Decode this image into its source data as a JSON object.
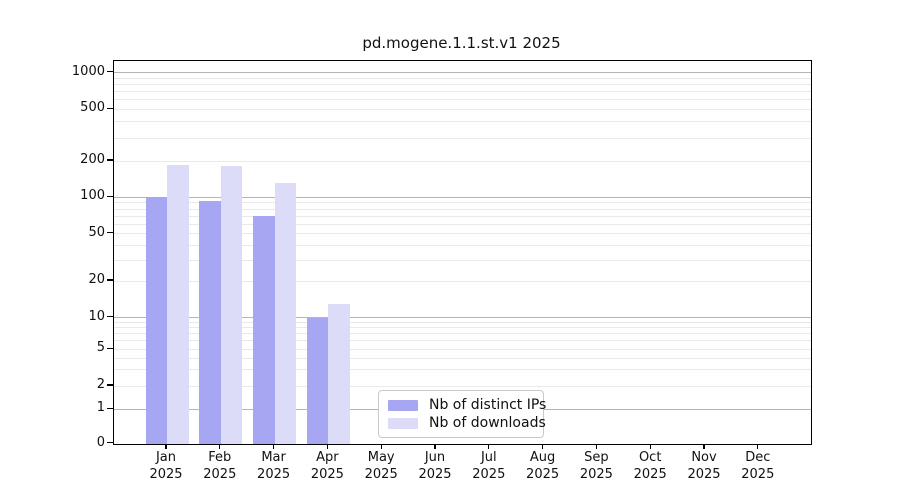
{
  "chart_data": {
    "type": "bar",
    "title": "pd.mogene.1.1.st.v1 2025",
    "categories": [
      "Jan",
      "Feb",
      "Mar",
      "Apr",
      "May",
      "Jun",
      "Jul",
      "Aug",
      "Sep",
      "Oct",
      "Nov",
      "Dec"
    ],
    "x_tick_year": "2025",
    "series": [
      {
        "name": "Nb of distinct IPs",
        "color": "#a6a6f3",
        "values": [
          100,
          94,
          70,
          10,
          0,
          0,
          0,
          0,
          0,
          0,
          0,
          0
        ]
      },
      {
        "name": "Nb of downloads",
        "color": "#dcdcf9",
        "values": [
          184,
          182,
          132,
          13,
          0,
          0,
          0,
          0,
          0,
          0,
          0,
          0
        ]
      }
    ],
    "yticks": [
      0,
      1,
      2,
      5,
      10,
      20,
      50,
      100,
      200,
      500,
      1000
    ],
    "ylim": [
      0,
      1000
    ],
    "yscale": "symlog",
    "xlabel": "",
    "ylabel": "",
    "grid": true,
    "legend_position": "bottom-center",
    "colors": {
      "major_grid": "#b5b5b5",
      "minor_grid": "#e9e9e9",
      "axis": "#000000",
      "text": "#111111",
      "background": "#ffffff"
    }
  }
}
